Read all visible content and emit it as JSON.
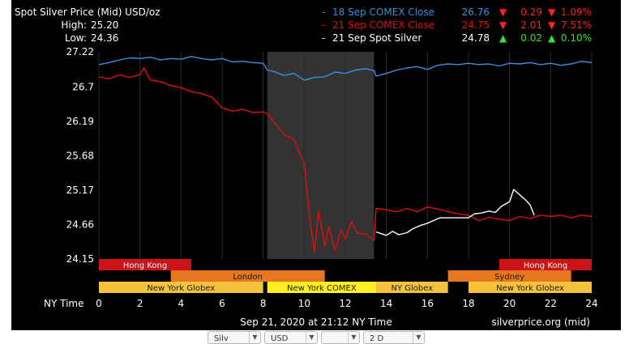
{
  "header": {
    "title": "Spot Silver Price (Mid) USD/oz",
    "high_label": "High:",
    "high_value": "25.20",
    "low_label": "Low:",
    "low_value": "24.36"
  },
  "legend": [
    {
      "name": "18 Sep COMEX Close",
      "price": "26.76",
      "change": "0.29",
      "pct": "1.09%",
      "direction": "down",
      "color": "#3a8fe0"
    },
    {
      "name": "21 Sep COMEX Close",
      "price": "24.75",
      "change": "2.01",
      "pct": "7.51%",
      "direction": "down",
      "color": "#e01010"
    },
    {
      "name": "21 Sep Spot Silver",
      "price": "24.78",
      "change": "0.02",
      "pct": "0.10%",
      "direction": "up",
      "color": "#ffffff"
    }
  ],
  "footer": {
    "x_axis_label": "NY Time",
    "timestamp": "Sep 21, 2020 at 21:12 NY Time",
    "source": "silverprice.org (mid)"
  },
  "sessions": [
    {
      "name": "Hong Kong",
      "start": 0,
      "end": 4.5,
      "row": 0,
      "color": "#cc1418",
      "text": "#f0f0f0"
    },
    {
      "name": "Hong Kong",
      "start": 19.5,
      "end": 24,
      "row": 0,
      "color": "#cc1418",
      "text": "#f0f0f0"
    },
    {
      "name": "London",
      "start": 3.5,
      "end": 11,
      "row": 1,
      "color": "#e8761e",
      "text": "#1a1a1a"
    },
    {
      "name": "Sydney",
      "start": 17,
      "end": 23,
      "row": 1,
      "color": "#e8761e",
      "text": "#1a1a1a"
    },
    {
      "name": "New York Globex",
      "start": 0,
      "end": 8,
      "row": 2,
      "color": "#f5c23c",
      "text": "#1a1a1a"
    },
    {
      "name": "New York COMEX",
      "start": 8.2,
      "end": 13.5,
      "row": 2,
      "color": "#ffee22",
      "text": "#1a1a1a"
    },
    {
      "name": "NY Globex",
      "start": 13.5,
      "end": 17,
      "row": 2,
      "color": "#f5c23c",
      "text": "#1a1a1a"
    },
    {
      "name": "New York Globex",
      "start": 18,
      "end": 24,
      "row": 2,
      "color": "#f5c23c",
      "text": "#1a1a1a"
    }
  ],
  "controls": [
    {
      "name": "metal-select",
      "value": "Silv"
    },
    {
      "name": "currency-select",
      "value": "USD"
    },
    {
      "name": "unit-select",
      "value": ""
    },
    {
      "name": "range-select",
      "value": "2 D"
    }
  ],
  "chart_data": {
    "type": "line",
    "xlabel": "NY Time",
    "ylabel": "",
    "xlim": [
      0,
      24
    ],
    "ylim": [
      24.15,
      27.22
    ],
    "x_ticks": [
      0,
      2,
      4,
      6,
      8,
      10,
      12,
      14,
      16,
      18,
      20,
      22,
      24
    ],
    "y_ticks": [
      27.22,
      26.7,
      26.19,
      25.68,
      25.17,
      24.66,
      24.15
    ],
    "shaded_range": [
      8.2,
      13.4
    ],
    "grid": "vertical",
    "series": [
      {
        "name": "18 Sep COMEX Close",
        "color": "#3a8fe0",
        "x": [
          0,
          0.5,
          1,
          1.5,
          2,
          2.5,
          3,
          3.5,
          4,
          4.5,
          5,
          5.5,
          6,
          6.5,
          7,
          7.5,
          8,
          8.2,
          8.6,
          9,
          9.5,
          10,
          10.5,
          11,
          11.5,
          12,
          12.5,
          13,
          13.4,
          13.5,
          14,
          14.5,
          15,
          15.5,
          16,
          16.5,
          17,
          17.5,
          18,
          18.5,
          19,
          19.5,
          20,
          20.5,
          21,
          21.5,
          22,
          22.5,
          23,
          23.5,
          24
        ],
        "y": [
          27.03,
          27.06,
          27.1,
          27.13,
          27.12,
          27.14,
          27.1,
          27.12,
          27.11,
          27.15,
          27.12,
          27.1,
          27.12,
          27.07,
          27.08,
          27.06,
          27.05,
          26.95,
          26.92,
          26.87,
          26.9,
          26.8,
          26.84,
          26.85,
          26.92,
          26.9,
          26.95,
          26.97,
          26.94,
          26.86,
          26.9,
          26.95,
          26.98,
          27.0,
          26.96,
          27.02,
          27.04,
          27.03,
          27.05,
          27.03,
          27.04,
          27.01,
          27.05,
          27.04,
          27.06,
          27.03,
          27.05,
          27.02,
          27.04,
          27.08,
          27.06
        ]
      },
      {
        "name": "21 Sep COMEX Close",
        "color": "#e01010",
        "x": [
          0,
          0.5,
          1,
          1.5,
          2,
          2.2,
          2.5,
          3,
          3.5,
          4,
          4.5,
          5,
          5.5,
          6,
          6.5,
          7,
          7.5,
          8,
          8.2,
          8.6,
          9,
          9.5,
          10,
          10.3,
          10.5,
          10.7,
          11,
          11.2,
          11.5,
          11.8,
          12,
          12.3,
          12.6,
          13,
          13.4,
          13.5,
          14,
          14.5,
          15,
          15.5,
          16,
          16.5,
          17,
          17.5,
          18,
          18.5,
          19,
          19.5,
          20,
          20.5,
          21,
          21.5,
          22,
          22.5,
          23,
          23.5,
          24
        ],
        "y": [
          26.85,
          26.82,
          26.88,
          26.84,
          26.88,
          26.98,
          26.8,
          26.78,
          26.72,
          26.69,
          26.63,
          26.6,
          26.55,
          26.39,
          26.34,
          26.37,
          26.32,
          26.33,
          26.3,
          26.15,
          26.0,
          25.92,
          25.56,
          24.68,
          24.25,
          24.86,
          24.34,
          24.63,
          24.28,
          24.58,
          24.45,
          24.7,
          24.53,
          24.52,
          24.43,
          24.9,
          24.88,
          24.85,
          24.9,
          24.85,
          24.92,
          24.89,
          24.85,
          24.82,
          24.8,
          24.72,
          24.77,
          24.74,
          24.72,
          24.78,
          24.75,
          24.8,
          24.78,
          24.8,
          24.76,
          24.8,
          24.78
        ]
      },
      {
        "name": "21 Sep Spot Silver",
        "color": "#ffffff",
        "x": [
          13.5,
          13.8,
          14,
          14.3,
          14.6,
          15,
          15.3,
          15.6,
          16,
          16.3,
          16.6,
          17,
          17.3,
          17.6,
          18,
          18.3,
          18.6,
          19,
          19.3,
          19.6,
          20,
          20.2,
          20.5,
          20.8,
          21,
          21.2
        ],
        "y": [
          24.55,
          24.52,
          24.5,
          24.56,
          24.51,
          24.54,
          24.6,
          24.64,
          24.68,
          24.72,
          24.76,
          24.76,
          24.76,
          24.76,
          24.76,
          24.82,
          24.83,
          24.86,
          24.84,
          24.93,
          25.0,
          25.18,
          25.1,
          25.02,
          24.95,
          24.8
        ]
      }
    ]
  }
}
